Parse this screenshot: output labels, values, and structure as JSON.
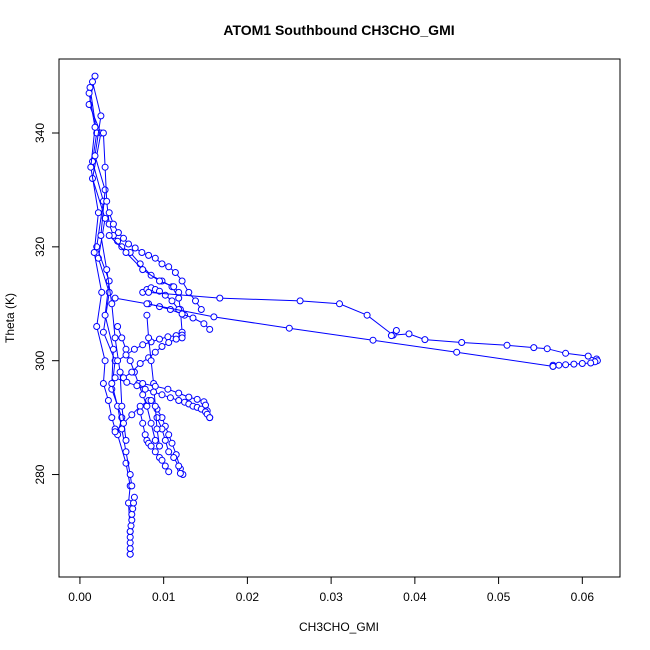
{
  "chart_data": {
    "type": "scatter",
    "title": "ATOM1 Southbound CH3CHO_GMI",
    "xlabel": "CH3CHO_GMI",
    "ylabel": "Theta (K)",
    "xlim": [
      -0.0025,
      0.0645
    ],
    "ylim": [
      262,
      353
    ],
    "x_ticks": [
      0.0,
      0.01,
      0.02,
      0.03,
      0.04,
      0.05,
      0.06
    ],
    "x_tick_labels": [
      "0.00",
      "0.01",
      "0.02",
      "0.03",
      "0.04",
      "0.05",
      "0.06"
    ],
    "y_ticks": [
      280,
      300,
      320,
      340
    ],
    "y_tick_labels": [
      "280",
      "300",
      "320",
      "340"
    ],
    "grid": false,
    "legend": "none",
    "marker": "open-circle",
    "connected": true,
    "colors": {
      "series": "#0000ff",
      "axis": "#000000",
      "background": "#ffffff"
    },
    "series": [
      {
        "x": [
          0.0018,
          0.0011,
          0.0025,
          0.0015,
          0.003,
          0.0022,
          0.0035,
          0.0028,
          0.0042,
          0.0038,
          0.005,
          0.0045,
          0.0055,
          0.006,
          0.0058,
          0.006,
          0.006
        ],
        "y": [
          350,
          345,
          340,
          332,
          325,
          318,
          312,
          305,
          300,
          295,
          290,
          287,
          282,
          278,
          275,
          270,
          266
        ]
      },
      {
        "x": [
          0.0012,
          0.002,
          0.0015,
          0.0028,
          0.002,
          0.0035,
          0.003,
          0.004,
          0.0038,
          0.0045,
          0.005,
          0.0055,
          0.006,
          0.0062
        ],
        "y": [
          348,
          340,
          335,
          328,
          320,
          314,
          308,
          302,
          296,
          292,
          288,
          284,
          280,
          278
        ]
      },
      {
        "x": [
          0.0015,
          0.0025,
          0.0018,
          0.003,
          0.0025,
          0.0032,
          0.0038,
          0.0042,
          0.0048,
          0.005,
          0.0055
        ],
        "y": [
          349,
          343,
          336,
          330,
          322,
          316,
          310,
          304,
          298,
          292,
          286
        ]
      },
      {
        "x": [
          0.0011,
          0.0018,
          0.0013,
          0.0022,
          0.0017,
          0.0026,
          0.002,
          0.003,
          0.0028,
          0.0034,
          0.0038,
          0.0042
        ],
        "y": [
          347,
          341,
          334,
          326,
          319,
          312,
          306,
          300,
          296,
          293,
          290,
          288
        ]
      },
      {
        "x": [
          0.0028,
          0.003,
          0.0032,
          0.0035,
          0.004,
          0.0045,
          0.005,
          0.006,
          0.0072,
          0.0085,
          0.0098,
          0.011,
          0.0118,
          0.012,
          0.0122
        ],
        "y": [
          340,
          334,
          328,
          324,
          322,
          321,
          320,
          319,
          317,
          315,
          314,
          313,
          311,
          309,
          305
        ]
      },
      {
        "x": [
          0.0035,
          0.004,
          0.0046,
          0.0052,
          0.0058,
          0.0066,
          0.0074,
          0.0082,
          0.009,
          0.0098,
          0.0106,
          0.0114,
          0.0122,
          0.013,
          0.0138,
          0.0145
        ],
        "y": [
          326,
          324,
          322.5,
          321.5,
          320.5,
          319.8,
          319,
          318.5,
          318,
          317,
          316.5,
          315.5,
          314,
          312,
          310.5,
          309
        ]
      },
      {
        "x": [
          0.0075,
          0.008,
          0.0085,
          0.009,
          0.0095,
          0.0102,
          0.011,
          0.0118,
          0.0125
        ],
        "y": [
          312,
          312.5,
          312.8,
          312.5,
          312.2,
          311.5,
          310.5,
          309,
          308
        ]
      },
      {
        "x": [
          0.0082,
          0.0095,
          0.0108,
          0.0122,
          0.0135,
          0.0148,
          0.0155
        ],
        "y": [
          310,
          309.5,
          309,
          308.2,
          307.5,
          306.5,
          305.5
        ]
      },
      {
        "x": [
          0.0045,
          0.005,
          0.0055,
          0.006,
          0.0065,
          0.007,
          0.0075,
          0.008,
          0.0085,
          0.009
        ],
        "y": [
          306,
          304,
          302,
          300,
          298,
          296,
          294,
          292,
          289,
          286
        ]
      },
      {
        "x": [
          0.0045,
          0.0055,
          0.0065,
          0.0075,
          0.0085,
          0.0095,
          0.0105,
          0.0115,
          0.0122
        ],
        "y": [
          300,
          301,
          302,
          302.8,
          303.3,
          303.8,
          304.2,
          304.4,
          304.5
        ]
      },
      {
        "x": [
          0.0052,
          0.0062,
          0.0072,
          0.0082,
          0.009,
          0.0098,
          0.0106,
          0.0115,
          0.0122
        ],
        "y": [
          297,
          298,
          299.5,
          300.5,
          301.5,
          302.5,
          303.2,
          303.8,
          304
        ]
      },
      {
        "x": [
          0.0042,
          0.0052,
          0.0062,
          0.0072,
          0.0082
        ],
        "y": [
          287.5,
          289,
          290.5,
          292,
          293
        ]
      },
      {
        "x": [
          0.0072,
          0.0075,
          0.0078,
          0.008,
          0.0082,
          0.0085,
          0.009,
          0.0095,
          0.0098,
          0.0102,
          0.0106
        ],
        "y": [
          291,
          289,
          287,
          286,
          285.5,
          285,
          284,
          283,
          282.5,
          281.5,
          280.5
        ]
      },
      {
        "x": [
          0.0085,
          0.0092,
          0.0098,
          0.0102,
          0.0106,
          0.011,
          0.0115,
          0.012,
          0.0123
        ],
        "y": [
          293,
          291.5,
          290,
          288.5,
          287,
          285.5,
          283.5,
          281,
          280
        ]
      },
      {
        "x": [
          0.0092,
          0.0098,
          0.0102,
          0.0106,
          0.0112,
          0.0118,
          0.012
        ],
        "y": [
          290,
          288,
          286,
          284,
          283,
          281.5,
          280.2
        ]
      },
      {
        "x": [
          0.008,
          0.0082,
          0.0085,
          0.0088,
          0.009,
          0.0092,
          0.0095
        ],
        "y": [
          308,
          304,
          300,
          296,
          292,
          288,
          285
        ]
      },
      {
        "x": [
          0.0075,
          0.009,
          0.0105,
          0.0118,
          0.013,
          0.014,
          0.0148,
          0.015,
          0.0152,
          0.0155
        ],
        "y": [
          296,
          295.5,
          295,
          294.3,
          293.6,
          293.2,
          292.8,
          292.2,
          291.2,
          290
        ]
      },
      {
        "x": [
          0.0042,
          0.0056,
          0.0068,
          0.0078,
          0.0088,
          0.0098,
          0.0108,
          0.0118,
          0.0125,
          0.013,
          0.0135,
          0.014,
          0.0145,
          0.015,
          0.0152,
          0.0155
        ],
        "y": [
          297,
          296.2,
          295.6,
          295,
          294.5,
          294,
          293.5,
          293,
          292.7,
          292.4,
          292,
          291.8,
          291.5,
          291,
          290.6,
          290
        ]
      },
      {
        "x": [
          0.0035,
          0.0055,
          0.0075,
          0.0095,
          0.0112,
          0.0118
        ],
        "y": [
          322,
          319,
          316,
          314,
          313,
          312
        ]
      },
      {
        "x": [
          0.0082,
          0.0167,
          0.0263,
          0.031,
          0.0343,
          0.0374,
          0.0393,
          0.0412,
          0.0456,
          0.051,
          0.0542,
          0.0558,
          0.058,
          0.0607,
          0.0617,
          0.0618,
          0.0615,
          0.061,
          0.06,
          0.059,
          0.058,
          0.0572,
          0.0565,
          0.0565
        ],
        "y": [
          312,
          311,
          310.5,
          310,
          308,
          304.5,
          304.7,
          303.7,
          303.2,
          302.7,
          302.3,
          302.1,
          301.3,
          300.8,
          300.3,
          300,
          299.8,
          299.6,
          299.5,
          299.4,
          299.3,
          299.2,
          299.2,
          299
        ]
      },
      {
        "x": [
          0.0372,
          0.0378
        ],
        "y": [
          304.4,
          305.3
        ]
      },
      {
        "x": [
          0.0565,
          0.045,
          0.035,
          0.025,
          0.016,
          0.008,
          0.0042
        ],
        "y": [
          299,
          301.5,
          303.6,
          305.7,
          307.7,
          310,
          311
        ]
      },
      {
        "x": [
          0.006,
          0.006,
          0.006,
          0.006,
          0.006,
          0.0061,
          0.0062,
          0.0062,
          0.0063,
          0.0064,
          0.0065
        ],
        "y": [
          266,
          267,
          268,
          269,
          270,
          271,
          272,
          273,
          274,
          275,
          276
        ]
      }
    ]
  }
}
